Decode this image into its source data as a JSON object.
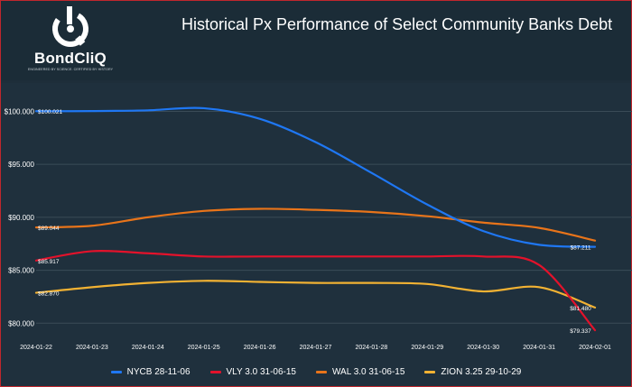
{
  "header": {
    "title": "Historical Px Performance of Select Community Banks Debt",
    "logo_word": "BondCliQ",
    "logo_tagline": "ENGINEERED BY SCIENCE. CERTIFIED BY HISTORY"
  },
  "colors": {
    "NYCB": "#1f77f3",
    "VLY": "#e3122b",
    "WAL": "#e8741a",
    "ZION": "#f2b233",
    "grid": "#3a4b57",
    "axis_text": "#ffffff"
  },
  "chart_data": {
    "type": "line",
    "title": "Historical Px Performance of Select Community Banks Debt",
    "xlabel": "",
    "ylabel": "",
    "x": [
      "2024-01-22",
      "2024-01-23",
      "2024-01-24",
      "2024-01-25",
      "2024-01-26",
      "2024-01-27",
      "2024-01-28",
      "2024-01-29",
      "2024-01-30",
      "2024-01-31",
      "2024-02-01"
    ],
    "y_ticks": [
      "$80.000",
      "$85.000",
      "$90.000",
      "$95.000",
      "$100.000"
    ],
    "ylim": [
      79,
      102
    ],
    "grid": true,
    "legend_position": "bottom",
    "series": [
      {
        "name": "NYCB 28-11-06",
        "key": "NYCB",
        "values": [
          100.021,
          100.03,
          100.1,
          100.3,
          99.3,
          97.1,
          94.2,
          91.2,
          88.7,
          87.4,
          87.211
        ],
        "labels": [
          {
            "index": 0,
            "text": "$100.021"
          },
          {
            "index": 10,
            "text": "$87.211"
          }
        ]
      },
      {
        "name": "VLY 3.0 31-06-15",
        "key": "VLY",
        "values": [
          85.917,
          86.8,
          86.6,
          86.3,
          86.3,
          86.3,
          86.3,
          86.3,
          86.3,
          85.5,
          79.337
        ],
        "labels": [
          {
            "index": 0,
            "text": "$85.917"
          },
          {
            "index": 10,
            "text": "$79.337"
          }
        ]
      },
      {
        "name": "WAL 3.0 31-06-15",
        "key": "WAL",
        "values": [
          89.044,
          89.2,
          90.0,
          90.6,
          90.8,
          90.7,
          90.5,
          90.1,
          89.5,
          89.0,
          87.8
        ],
        "labels": [
          {
            "index": 0,
            "text": "$89.044"
          }
        ]
      },
      {
        "name": "ZION 3.25 29-10-29",
        "key": "ZION",
        "values": [
          82.87,
          83.4,
          83.8,
          84.0,
          83.9,
          83.8,
          83.8,
          83.7,
          83.0,
          83.4,
          81.48
        ],
        "labels": [
          {
            "index": 0,
            "text": "$82.870"
          },
          {
            "index": 10,
            "text": "$81.480"
          }
        ]
      }
    ]
  }
}
